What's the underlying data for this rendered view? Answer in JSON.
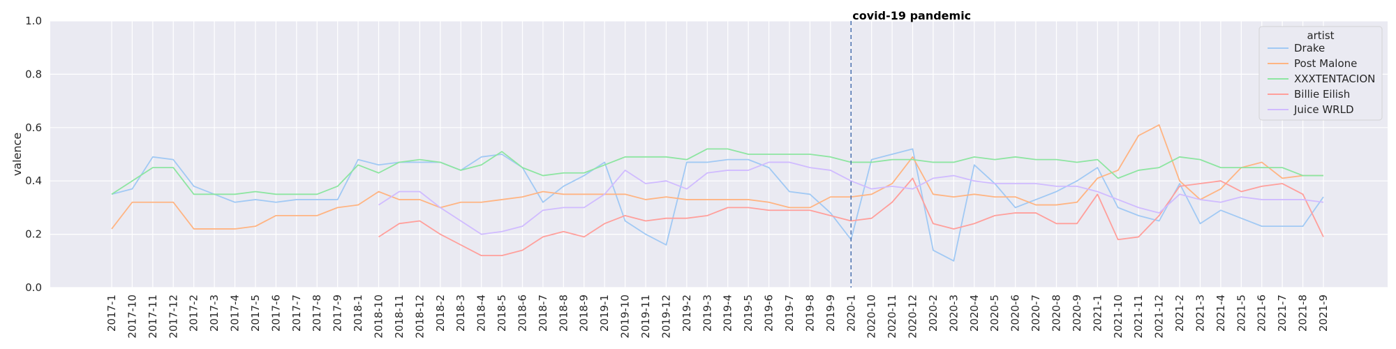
{
  "chart_data": {
    "type": "line",
    "title": "",
    "xlabel": "",
    "ylabel": "valence",
    "ylim": [
      0,
      1.0
    ],
    "yticks": [
      "0.0",
      "0.2",
      "0.4",
      "0.6",
      "0.8",
      "1.0"
    ],
    "grid": true,
    "legend_title": "artist",
    "legend_position": "top-right",
    "categories": [
      "2017-1",
      "2017-10",
      "2017-11",
      "2017-12",
      "2017-2",
      "2017-3",
      "2017-4",
      "2017-5",
      "2017-6",
      "2017-7",
      "2017-8",
      "2017-9",
      "2018-1",
      "2018-10",
      "2018-11",
      "2018-12",
      "2018-2",
      "2018-3",
      "2018-4",
      "2018-5",
      "2018-6",
      "2018-7",
      "2018-8",
      "2018-9",
      "2019-1",
      "2019-10",
      "2019-11",
      "2019-12",
      "2019-2",
      "2019-3",
      "2019-4",
      "2019-5",
      "2019-6",
      "2019-7",
      "2019-8",
      "2019-9",
      "2020-1",
      "2020-10",
      "2020-11",
      "2020-12",
      "2020-2",
      "2020-3",
      "2020-4",
      "2020-5",
      "2020-6",
      "2020-7",
      "2020-8",
      "2020-9",
      "2021-1",
      "2021-10",
      "2021-11",
      "2021-12",
      "2021-2",
      "2021-3",
      "2021-4",
      "2021-5",
      "2021-6",
      "2021-7",
      "2021-8",
      "2021-9"
    ],
    "annotation": {
      "x": "2020-1",
      "label": "covid-19 pandemic",
      "color": "#4c72b0"
    },
    "series": [
      {
        "name": "Drake",
        "color": "#a1c9f4",
        "values": [
          0.35,
          0.37,
          0.49,
          0.48,
          0.38,
          0.35,
          0.32,
          0.33,
          0.32,
          0.33,
          0.33,
          0.33,
          0.48,
          0.46,
          0.47,
          0.47,
          0.47,
          0.44,
          0.49,
          0.5,
          0.45,
          0.32,
          0.38,
          0.42,
          0.47,
          0.25,
          0.2,
          0.16,
          0.47,
          0.47,
          0.48,
          0.48,
          0.45,
          0.36,
          0.35,
          0.28,
          0.18,
          0.48,
          0.5,
          0.52,
          0.14,
          0.1,
          0.46,
          0.39,
          0.3,
          0.33,
          0.36,
          0.4,
          0.45,
          0.3,
          0.27,
          0.25,
          0.39,
          0.24,
          0.29,
          0.26,
          0.23,
          0.23,
          0.23,
          0.34
        ]
      },
      {
        "name": "Post Malone",
        "color": "#ffb482",
        "values": [
          0.22,
          0.32,
          0.32,
          0.32,
          0.22,
          0.22,
          0.22,
          0.23,
          0.27,
          0.27,
          0.27,
          0.3,
          0.31,
          0.36,
          0.33,
          0.33,
          0.3,
          0.32,
          0.32,
          0.33,
          0.34,
          0.36,
          0.35,
          0.35,
          0.35,
          0.35,
          0.33,
          0.34,
          0.33,
          0.33,
          0.33,
          0.33,
          0.32,
          0.3,
          0.3,
          0.34,
          0.34,
          0.35,
          0.39,
          0.49,
          0.35,
          0.34,
          0.35,
          0.34,
          0.34,
          0.31,
          0.31,
          0.32,
          0.41,
          0.44,
          0.57,
          0.61,
          0.4,
          0.33,
          0.37,
          0.45,
          0.47,
          0.41,
          0.42,
          0.42
        ]
      },
      {
        "name": "XXXTENTACION",
        "color": "#8de5a1",
        "values": [
          0.35,
          0.4,
          0.45,
          0.45,
          0.35,
          0.35,
          0.35,
          0.36,
          0.35,
          0.35,
          0.35,
          0.38,
          0.46,
          0.43,
          0.47,
          0.48,
          0.47,
          0.44,
          0.46,
          0.51,
          0.45,
          0.42,
          0.43,
          0.43,
          0.46,
          0.49,
          0.49,
          0.49,
          0.48,
          0.52,
          0.52,
          0.5,
          0.5,
          0.5,
          0.5,
          0.49,
          0.47,
          0.47,
          0.48,
          0.48,
          0.47,
          0.47,
          0.49,
          0.48,
          0.49,
          0.48,
          0.48,
          0.47,
          0.48,
          0.41,
          0.44,
          0.45,
          0.49,
          0.48,
          0.45,
          0.45,
          0.45,
          0.45,
          0.42,
          0.42
        ]
      },
      {
        "name": "Billie Eilish",
        "color": "#ff9f9b",
        "values": [
          null,
          null,
          null,
          null,
          null,
          null,
          null,
          null,
          null,
          null,
          null,
          null,
          null,
          0.19,
          0.24,
          0.25,
          0.2,
          0.16,
          0.12,
          0.12,
          0.14,
          0.19,
          0.21,
          0.19,
          0.24,
          0.27,
          0.25,
          0.26,
          0.26,
          0.27,
          0.3,
          0.3,
          0.29,
          0.29,
          0.29,
          0.27,
          0.25,
          0.26,
          0.32,
          0.41,
          0.24,
          0.22,
          0.24,
          0.27,
          0.28,
          0.28,
          0.24,
          0.24,
          0.35,
          0.18,
          0.19,
          0.27,
          0.38,
          0.39,
          0.4,
          0.36,
          0.38,
          0.39,
          0.35,
          0.19
        ]
      },
      {
        "name": "Juice WRLD",
        "color": "#d0bbff",
        "values": [
          null,
          null,
          null,
          null,
          null,
          null,
          null,
          null,
          null,
          null,
          null,
          null,
          null,
          0.31,
          0.36,
          0.36,
          0.3,
          0.25,
          0.2,
          0.21,
          0.23,
          0.29,
          0.3,
          0.3,
          0.35,
          0.44,
          0.39,
          0.4,
          0.37,
          0.43,
          0.44,
          0.44,
          0.47,
          0.47,
          0.45,
          0.44,
          0.4,
          0.37,
          0.38,
          0.37,
          0.41,
          0.42,
          0.4,
          0.39,
          0.39,
          0.39,
          0.38,
          0.38,
          0.36,
          0.33,
          0.3,
          0.28,
          0.35,
          0.33,
          0.32,
          0.34,
          0.33,
          0.33,
          0.33,
          0.32
        ]
      }
    ]
  }
}
